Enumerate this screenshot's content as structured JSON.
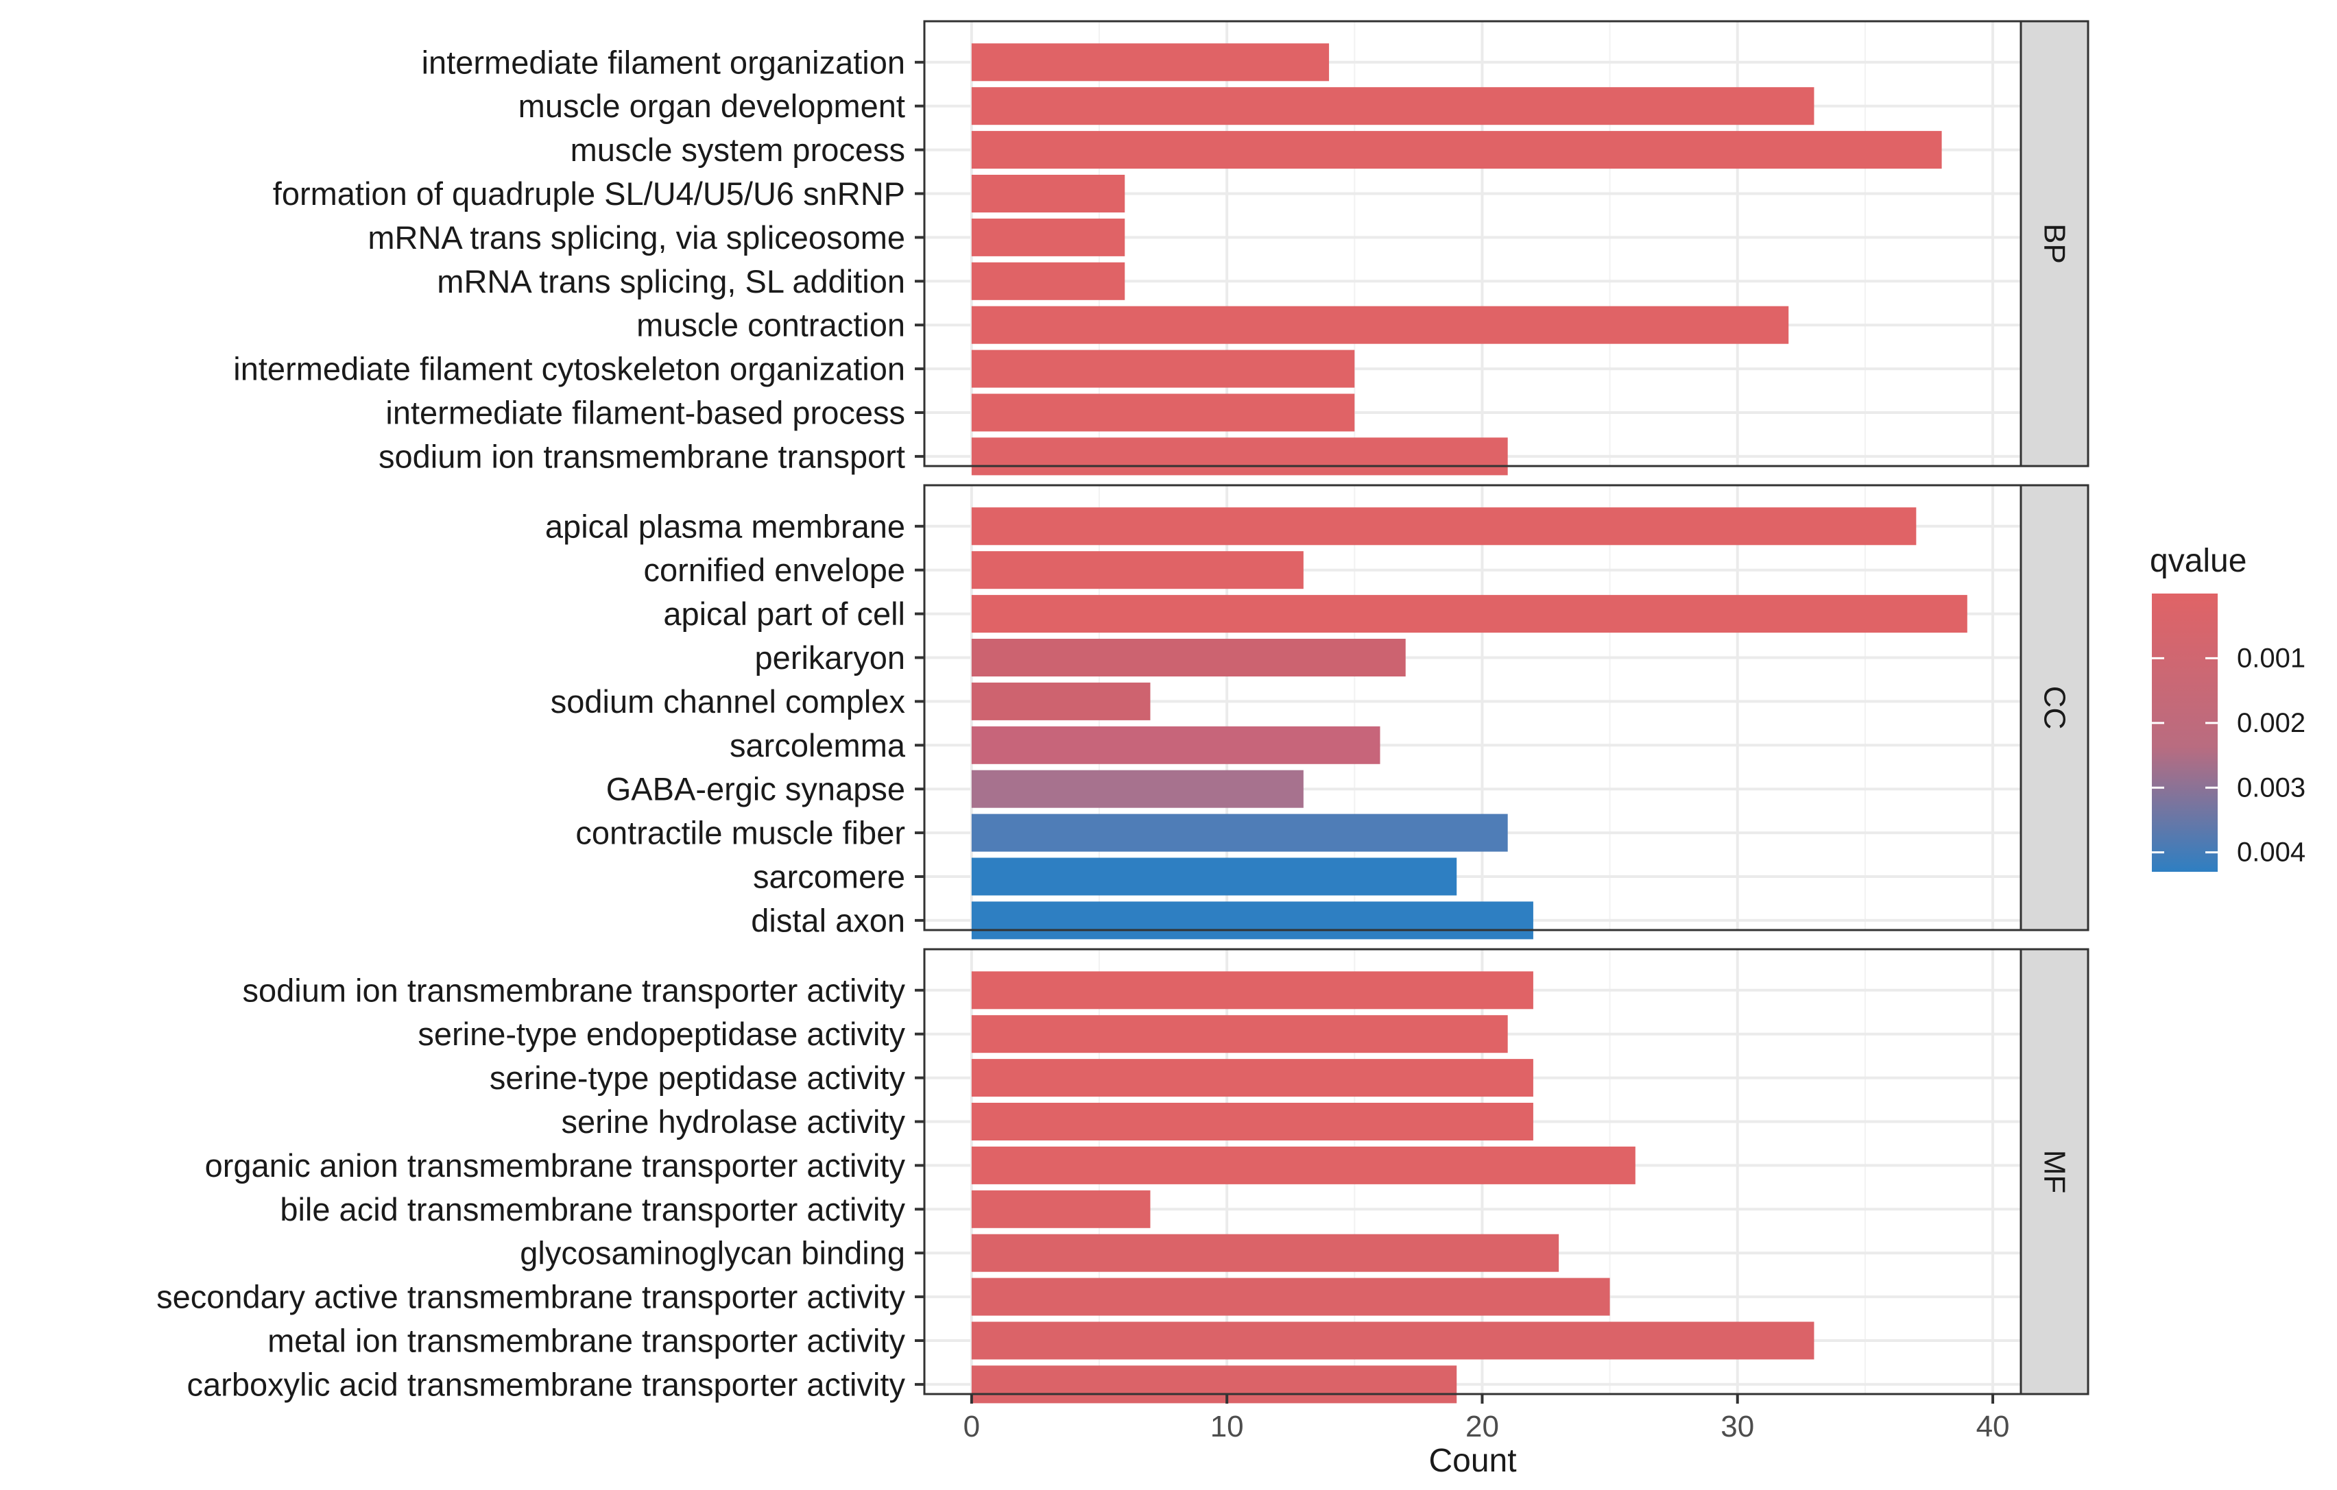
{
  "chart_data": {
    "type": "bar",
    "orientation": "horizontal",
    "xlabel": "Count",
    "xlim": [
      -1.85,
      41.1
    ],
    "xticks": [
      0,
      10,
      20,
      30,
      40
    ],
    "legend": {
      "title": "qvalue",
      "ticks": [
        "0.001",
        "0.002",
        "0.003",
        "0.004"
      ],
      "tick_values": [
        0.001,
        0.002,
        0.003,
        0.004
      ],
      "range": [
        0.0,
        0.0043
      ],
      "color_low": "#E06366",
      "color_high": "#2E7FC2",
      "placement": "right"
    },
    "panels": [
      {
        "name": "BP",
        "categories": [
          "intermediate filament organization",
          "muscle organ development",
          "muscle system process",
          "formation of quadruple SL/U4/U5/U6 snRNP",
          "mRNA trans splicing, via spliceosome",
          "mRNA trans splicing, SL addition",
          "muscle contraction",
          "intermediate filament cytoskeleton organization",
          "intermediate filament-based process",
          "sodium ion transmembrane transport"
        ],
        "values": [
          14,
          33,
          38,
          6,
          6,
          6,
          32,
          15,
          15,
          21
        ],
        "colors": [
          "#E06366",
          "#E06366",
          "#E06366",
          "#E06366",
          "#E06366",
          "#E06366",
          "#E06366",
          "#E06366",
          "#E06366",
          "#DF6367"
        ]
      },
      {
        "name": "CC",
        "categories": [
          "apical plasma membrane",
          "cornified envelope",
          "apical part of cell",
          "perikaryon",
          "sodium channel complex",
          "sarcolemma",
          "GABA-ergic synapse",
          "contractile muscle fiber",
          "sarcomere",
          "distal axon"
        ],
        "values": [
          37,
          13,
          39,
          17,
          7,
          16,
          13,
          21,
          19,
          22
        ],
        "colors": [
          "#E06366",
          "#E06366",
          "#E06366",
          "#CC6370",
          "#CE636F",
          "#C7657A",
          "#A7728E",
          "#4F7DB7",
          "#2E7FC2",
          "#2E7FC2"
        ]
      },
      {
        "name": "MF",
        "categories": [
          "sodium ion transmembrane transporter activity",
          "serine-type endopeptidase activity",
          "serine-type peptidase activity",
          "serine hydrolase activity",
          "organic anion transmembrane transporter activity",
          "bile acid transmembrane transporter activity",
          "glycosaminoglycan binding",
          "secondary active transmembrane transporter activity",
          "metal ion transmembrane transporter activity",
          "carboxylic acid transmembrane transporter activity"
        ],
        "values": [
          22,
          21,
          22,
          22,
          26,
          7,
          23,
          25,
          33,
          19
        ],
        "colors": [
          "#E06366",
          "#E06366",
          "#E06366",
          "#E06366",
          "#E06366",
          "#DE6367",
          "#DB6368",
          "#DB6368",
          "#DB6368",
          "#DB6368"
        ]
      }
    ]
  }
}
